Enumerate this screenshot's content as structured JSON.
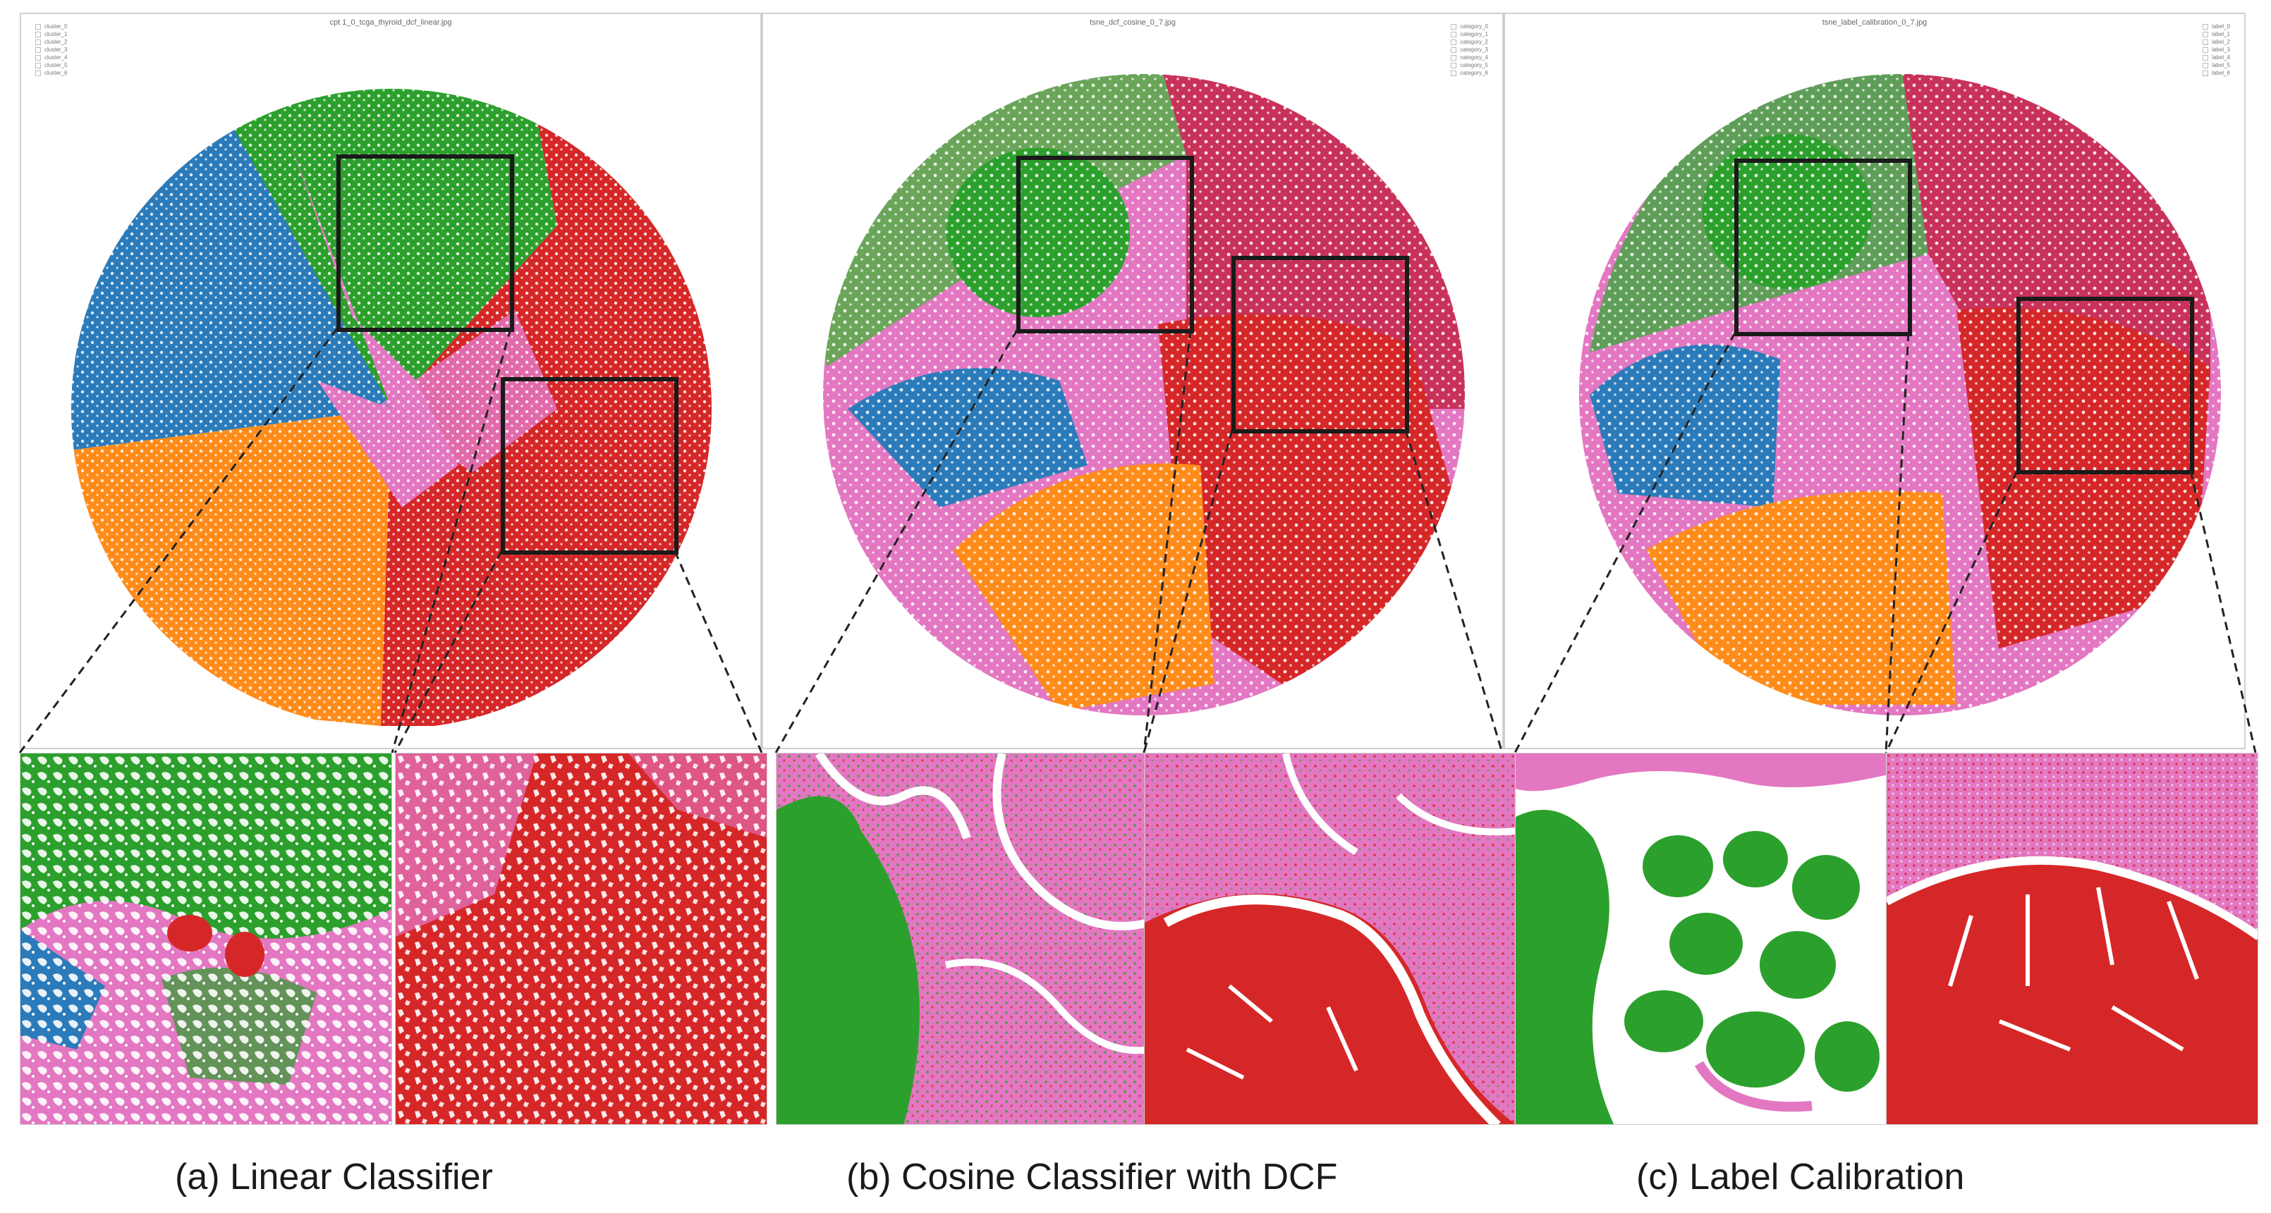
{
  "captions": [
    "(a) Linear Classifier",
    "(b) Cosine Classifier with DCF",
    "(c) Label Calibration"
  ],
  "colors": {
    "blue": "#2b7bba",
    "orange": "#ff8c1a",
    "green": "#2ca02c",
    "red": "#d62728",
    "pink": "#e377c2",
    "box": "#1a1a1a"
  },
  "panels": [
    {
      "plot_title": "cpt 1_0_tcga_thyroid_dcf_linear.jpg",
      "legend": [
        "cluster_0",
        "cluster_1",
        "cluster_2",
        "cluster_3",
        "cluster_4",
        "cluster_5",
        "cluster_6"
      ],
      "legend_side": "left"
    },
    {
      "plot_title": "tsne_dcf_cosine_0_7.jpg",
      "legend": [
        "category_0",
        "category_1",
        "category_2",
        "category_3",
        "category_4",
        "category_5",
        "category_6"
      ],
      "legend_side": "right"
    },
    {
      "plot_title": "tsne_label_calibration_0_7.jpg",
      "legend": [
        "label_0",
        "label_1",
        "label_2",
        "label_3",
        "label_4",
        "label_5",
        "label_6"
      ],
      "legend_side": "right"
    }
  ]
}
